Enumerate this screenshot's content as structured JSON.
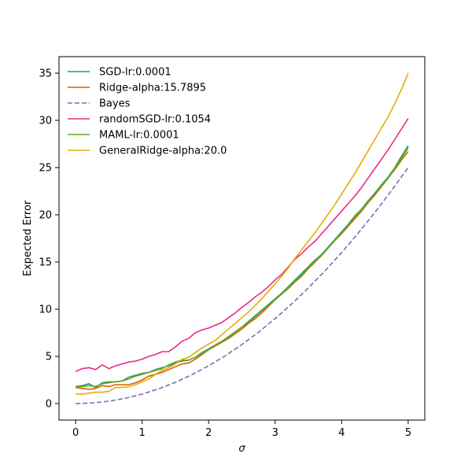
{
  "chart_data": {
    "type": "line",
    "xlabel": "σ",
    "ylabel": "Expected Error",
    "xlim": [
      -0.25,
      5.25
    ],
    "ylim": [
      -1.75,
      36.75
    ],
    "xticks": [
      0,
      1,
      2,
      3,
      4,
      5
    ],
    "yticks": [
      0,
      5,
      10,
      15,
      20,
      25,
      30,
      35
    ],
    "grid": false,
    "legend_position": "top-left",
    "series": [
      {
        "name": "SGD-lr:0.0001",
        "color": "#1b9e77",
        "dash": "solid",
        "points": [
          [
            0,
            1.8
          ],
          [
            0.1,
            1.9
          ],
          [
            0.2,
            2.1
          ],
          [
            0.3,
            1.7
          ],
          [
            0.4,
            2.2
          ],
          [
            0.5,
            2.3
          ],
          [
            0.6,
            2.3
          ],
          [
            0.7,
            2.4
          ],
          [
            0.8,
            2.8
          ],
          [
            0.9,
            3.0
          ],
          [
            1.0,
            3.2
          ],
          [
            1.1,
            3.3
          ],
          [
            1.2,
            3.6
          ],
          [
            1.3,
            3.8
          ],
          [
            1.4,
            4.0
          ],
          [
            1.5,
            4.3
          ],
          [
            1.6,
            4.5
          ],
          [
            1.7,
            4.6
          ],
          [
            1.8,
            4.9
          ],
          [
            1.9,
            5.4
          ],
          [
            2.0,
            5.8
          ],
          [
            2.1,
            6.2
          ],
          [
            2.2,
            6.6
          ],
          [
            2.3,
            7.1
          ],
          [
            2.4,
            7.6
          ],
          [
            2.5,
            8.1
          ],
          [
            2.6,
            8.7
          ],
          [
            2.7,
            9.3
          ],
          [
            2.8,
            9.9
          ],
          [
            2.9,
            10.5
          ],
          [
            3.0,
            11.1
          ],
          [
            3.1,
            11.7
          ],
          [
            3.2,
            12.4
          ],
          [
            3.3,
            13.1
          ],
          [
            3.4,
            13.8
          ],
          [
            3.5,
            14.5
          ],
          [
            3.6,
            15.2
          ],
          [
            3.7,
            15.8
          ],
          [
            3.8,
            16.6
          ],
          [
            3.9,
            17.4
          ],
          [
            4.0,
            18.2
          ],
          [
            4.1,
            19.0
          ],
          [
            4.2,
            19.9
          ],
          [
            4.3,
            20.6
          ],
          [
            4.4,
            21.5
          ],
          [
            4.5,
            22.3
          ],
          [
            4.6,
            23.2
          ],
          [
            4.7,
            24.0
          ],
          [
            4.8,
            25.0
          ],
          [
            4.9,
            26.2
          ],
          [
            5.0,
            27.3
          ]
        ]
      },
      {
        "name": "Ridge-alpha:15.7895",
        "color": "#d95f02",
        "dash": "solid",
        "points": [
          [
            0,
            1.7
          ],
          [
            0.1,
            1.6
          ],
          [
            0.2,
            1.5
          ],
          [
            0.3,
            1.6
          ],
          [
            0.4,
            1.9
          ],
          [
            0.5,
            1.8
          ],
          [
            0.6,
            2.0
          ],
          [
            0.7,
            2.0
          ],
          [
            0.8,
            2.0
          ],
          [
            0.9,
            2.2
          ],
          [
            1.0,
            2.5
          ],
          [
            1.1,
            2.9
          ],
          [
            1.2,
            3.1
          ],
          [
            1.3,
            3.3
          ],
          [
            1.4,
            3.6
          ],
          [
            1.5,
            3.9
          ],
          [
            1.6,
            4.2
          ],
          [
            1.7,
            4.3
          ],
          [
            1.8,
            4.7
          ],
          [
            1.9,
            5.2
          ],
          [
            2.0,
            5.7
          ],
          [
            2.1,
            6.1
          ],
          [
            2.2,
            6.5
          ],
          [
            2.3,
            6.9
          ],
          [
            2.4,
            7.4
          ],
          [
            2.5,
            7.9
          ],
          [
            2.6,
            8.5
          ],
          [
            2.7,
            9.0
          ],
          [
            2.8,
            9.6
          ],
          [
            2.9,
            10.3
          ],
          [
            3.0,
            11.0
          ],
          [
            3.1,
            11.6
          ],
          [
            3.2,
            12.2
          ],
          [
            3.3,
            12.9
          ],
          [
            3.4,
            13.5
          ],
          [
            3.5,
            14.3
          ],
          [
            3.6,
            15.0
          ],
          [
            3.7,
            15.7
          ],
          [
            3.8,
            16.5
          ],
          [
            3.9,
            17.3
          ],
          [
            4.0,
            18.0
          ],
          [
            4.1,
            18.8
          ],
          [
            4.2,
            19.6
          ],
          [
            4.3,
            20.4
          ],
          [
            4.4,
            21.3
          ],
          [
            4.5,
            22.1
          ],
          [
            4.6,
            23.0
          ],
          [
            4.7,
            23.9
          ],
          [
            4.8,
            24.8
          ],
          [
            4.9,
            25.8
          ],
          [
            5.0,
            26.7
          ]
        ]
      },
      {
        "name": "Bayes",
        "color": "#7570b3",
        "dash": "dashed",
        "points": [
          [
            0,
            0
          ],
          [
            0.25,
            0.0625
          ],
          [
            0.5,
            0.25
          ],
          [
            0.75,
            0.5625
          ],
          [
            1.0,
            1.0
          ],
          [
            1.25,
            1.5625
          ],
          [
            1.5,
            2.25
          ],
          [
            1.75,
            3.0625
          ],
          [
            2.0,
            4.0
          ],
          [
            2.25,
            5.0625
          ],
          [
            2.5,
            6.25
          ],
          [
            2.75,
            7.5625
          ],
          [
            3.0,
            9.0
          ],
          [
            3.25,
            10.5625
          ],
          [
            3.5,
            12.25
          ],
          [
            3.75,
            14.0625
          ],
          [
            4.0,
            16.0
          ],
          [
            4.25,
            18.0625
          ],
          [
            4.5,
            20.25
          ],
          [
            4.75,
            22.5625
          ],
          [
            5.0,
            25.0
          ]
        ]
      },
      {
        "name": "randomSGD-lr:0.1054",
        "color": "#e7298a",
        "dash": "solid",
        "points": [
          [
            0,
            3.4
          ],
          [
            0.1,
            3.7
          ],
          [
            0.2,
            3.8
          ],
          [
            0.3,
            3.6
          ],
          [
            0.4,
            4.1
          ],
          [
            0.5,
            3.7
          ],
          [
            0.6,
            4.0
          ],
          [
            0.7,
            4.2
          ],
          [
            0.8,
            4.4
          ],
          [
            0.9,
            4.5
          ],
          [
            1.0,
            4.7
          ],
          [
            1.1,
            5.0
          ],
          [
            1.2,
            5.2
          ],
          [
            1.3,
            5.5
          ],
          [
            1.4,
            5.5
          ],
          [
            1.5,
            6.0
          ],
          [
            1.6,
            6.6
          ],
          [
            1.7,
            6.9
          ],
          [
            1.8,
            7.5
          ],
          [
            1.9,
            7.8
          ],
          [
            2.0,
            8.0
          ],
          [
            2.1,
            8.3
          ],
          [
            2.2,
            8.6
          ],
          [
            2.3,
            9.1
          ],
          [
            2.4,
            9.6
          ],
          [
            2.5,
            10.2
          ],
          [
            2.6,
            10.7
          ],
          [
            2.7,
            11.3
          ],
          [
            2.8,
            11.8
          ],
          [
            2.9,
            12.4
          ],
          [
            3.0,
            13.1
          ],
          [
            3.1,
            13.7
          ],
          [
            3.2,
            14.5
          ],
          [
            3.3,
            15.3
          ],
          [
            3.4,
            15.9
          ],
          [
            3.5,
            16.6
          ],
          [
            3.6,
            17.2
          ],
          [
            3.7,
            18.0
          ],
          [
            3.8,
            18.8
          ],
          [
            3.9,
            19.6
          ],
          [
            4.0,
            20.4
          ],
          [
            4.1,
            21.2
          ],
          [
            4.2,
            22.0
          ],
          [
            4.3,
            22.9
          ],
          [
            4.4,
            23.9
          ],
          [
            4.5,
            24.9
          ],
          [
            4.6,
            25.9
          ],
          [
            4.7,
            26.9
          ],
          [
            4.8,
            28.0
          ],
          [
            4.9,
            29.1
          ],
          [
            5.0,
            30.2
          ]
        ]
      },
      {
        "name": "MAML-lr:0.0001",
        "color": "#66a61e",
        "dash": "solid",
        "points": [
          [
            0,
            1.8
          ],
          [
            0.1,
            1.8
          ],
          [
            0.2,
            1.9
          ],
          [
            0.3,
            1.8
          ],
          [
            0.4,
            2.1
          ],
          [
            0.5,
            2.2
          ],
          [
            0.6,
            2.3
          ],
          [
            0.7,
            2.4
          ],
          [
            0.8,
            2.6
          ],
          [
            0.9,
            2.9
          ],
          [
            1.0,
            3.1
          ],
          [
            1.1,
            3.3
          ],
          [
            1.2,
            3.5
          ],
          [
            1.3,
            3.7
          ],
          [
            1.4,
            4.1
          ],
          [
            1.5,
            4.4
          ],
          [
            1.6,
            4.6
          ],
          [
            1.7,
            4.6
          ],
          [
            1.8,
            4.9
          ],
          [
            1.9,
            5.3
          ],
          [
            2.0,
            5.7
          ],
          [
            2.1,
            6.2
          ],
          [
            2.2,
            6.6
          ],
          [
            2.3,
            7.0
          ],
          [
            2.4,
            7.6
          ],
          [
            2.5,
            8.1
          ],
          [
            2.6,
            8.6
          ],
          [
            2.7,
            9.2
          ],
          [
            2.8,
            9.8
          ],
          [
            2.9,
            10.4
          ],
          [
            3.0,
            11.0
          ],
          [
            3.1,
            11.6
          ],
          [
            3.2,
            12.3
          ],
          [
            3.3,
            13.0
          ],
          [
            3.4,
            13.6
          ],
          [
            3.5,
            14.4
          ],
          [
            3.6,
            15.1
          ],
          [
            3.7,
            15.7
          ],
          [
            3.8,
            16.5
          ],
          [
            3.9,
            17.3
          ],
          [
            4.0,
            18.1
          ],
          [
            4.1,
            18.9
          ],
          [
            4.2,
            19.8
          ],
          [
            4.3,
            20.5
          ],
          [
            4.4,
            21.4
          ],
          [
            4.5,
            22.2
          ],
          [
            4.6,
            23.1
          ],
          [
            4.7,
            23.9
          ],
          [
            4.8,
            24.9
          ],
          [
            4.9,
            26.0
          ],
          [
            5.0,
            27.1
          ]
        ]
      },
      {
        "name": "GeneralRidge-alpha:20.0",
        "color": "#e6ab02",
        "dash": "solid",
        "points": [
          [
            0,
            1.0
          ],
          [
            0.1,
            1.0
          ],
          [
            0.2,
            1.1
          ],
          [
            0.3,
            1.2
          ],
          [
            0.4,
            1.2
          ],
          [
            0.5,
            1.3
          ],
          [
            0.6,
            1.7
          ],
          [
            0.7,
            1.7
          ],
          [
            0.8,
            1.8
          ],
          [
            0.9,
            2.0
          ],
          [
            1.0,
            2.3
          ],
          [
            1.1,
            2.6
          ],
          [
            1.2,
            3.1
          ],
          [
            1.3,
            3.5
          ],
          [
            1.4,
            3.8
          ],
          [
            1.5,
            4.2
          ],
          [
            1.6,
            4.7
          ],
          [
            1.7,
            4.9
          ],
          [
            1.8,
            5.4
          ],
          [
            1.9,
            5.9
          ],
          [
            2.0,
            6.3
          ],
          [
            2.1,
            6.7
          ],
          [
            2.2,
            7.3
          ],
          [
            2.3,
            7.9
          ],
          [
            2.4,
            8.5
          ],
          [
            2.5,
            9.1
          ],
          [
            2.6,
            9.7
          ],
          [
            2.7,
            10.4
          ],
          [
            2.8,
            11.1
          ],
          [
            2.9,
            11.9
          ],
          [
            3.0,
            12.7
          ],
          [
            3.1,
            13.5
          ],
          [
            3.2,
            14.4
          ],
          [
            3.3,
            15.4
          ],
          [
            3.4,
            16.3
          ],
          [
            3.5,
            17.2
          ],
          [
            3.6,
            18.1
          ],
          [
            3.7,
            19.1
          ],
          [
            3.8,
            20.1
          ],
          [
            3.9,
            21.1
          ],
          [
            4.0,
            22.2
          ],
          [
            4.1,
            23.3
          ],
          [
            4.2,
            24.4
          ],
          [
            4.3,
            25.6
          ],
          [
            4.4,
            26.8
          ],
          [
            4.5,
            28.0
          ],
          [
            4.6,
            29.2
          ],
          [
            4.7,
            30.4
          ],
          [
            4.8,
            31.8
          ],
          [
            4.9,
            33.3
          ],
          [
            5.0,
            35.0
          ]
        ]
      }
    ]
  }
}
